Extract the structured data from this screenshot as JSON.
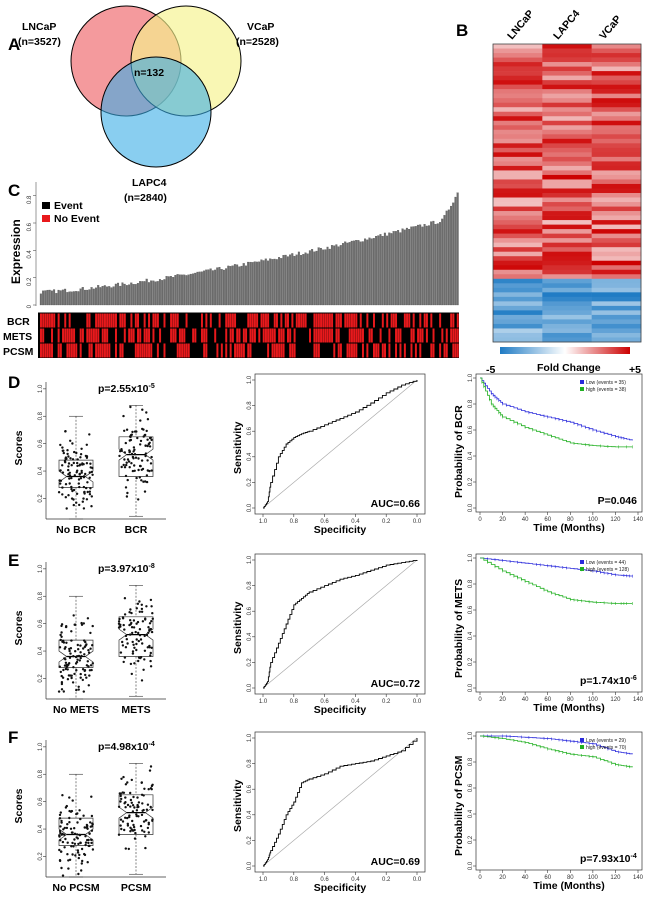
{
  "panels": {
    "A": "A",
    "B": "B",
    "C": "C",
    "D": "D",
    "E": "E",
    "F": "F"
  },
  "venn": {
    "lncap_name": "LNCaP",
    "lncap_n": "(n=3527)",
    "vcap_name": "VCaP",
    "vcap_n": "(n=2528)",
    "lapc4_name": "LAPC4",
    "lapc4_n": "(n=2840)",
    "overlap": "n=132",
    "colors": {
      "lncap": "#f0787c",
      "vcap": "#f6f38c",
      "lapc4": "#3aaee6"
    }
  },
  "heatmap": {
    "columns": [
      "LNCaP",
      "LAPC4",
      "VCaP"
    ],
    "legend_min": "-5",
    "legend_max": "+5",
    "legend_label": "Fold Change",
    "colors": {
      "high": "#cc0000",
      "low": "#1f7bc4",
      "mid": "#ffffff"
    }
  },
  "panelC": {
    "ylabel": "Expression",
    "legend": [
      {
        "label": "Event",
        "color": "#000000"
      },
      {
        "label": "No Event",
        "color": "#e8191c"
      }
    ],
    "yticks": [
      "0",
      "0.2",
      "0.4",
      "0.6",
      "0.8"
    ],
    "tracks": [
      "BCR",
      "METS",
      "PCSM"
    ]
  },
  "rows": [
    {
      "box": {
        "ylabel": "Scores",
        "p_text": "p=2.55x10",
        "p_exp": "-5",
        "groups": [
          "No BCR",
          "BCR"
        ],
        "yticks": [
          "0.2",
          "0.4",
          "0.6",
          "0.8",
          "1.0"
        ]
      },
      "roc": {
        "ylabel": "Sensitivity",
        "xlabel": "Specificity",
        "auc": "AUC=0.66",
        "xticks": [
          "1.0",
          "0.8",
          "0.6",
          "0.4",
          "0.2",
          "0.0"
        ],
        "yticks": [
          "0.0",
          "0.2",
          "0.4",
          "0.6",
          "0.8",
          "1.0"
        ]
      },
      "km": {
        "ylabel": "Probability of BCR",
        "xlabel": "Time (Months)",
        "p_text": "P=0.046",
        "p_exp": "",
        "legend": [
          "Low (events = 35)",
          "high (events = 38)"
        ],
        "xticks": [
          "0",
          "20",
          "40",
          "60",
          "80",
          "100",
          "120",
          "140"
        ],
        "yticks": [
          "0.0",
          "0.2",
          "0.4",
          "0.6",
          "0.8",
          "1.0"
        ]
      }
    },
    {
      "box": {
        "ylabel": "Scores",
        "p_text": "p=3.97x10",
        "p_exp": "-8",
        "groups": [
          "No METS",
          "METS"
        ],
        "yticks": [
          "0.2",
          "0.4",
          "0.6",
          "0.8",
          "1.0"
        ]
      },
      "roc": {
        "ylabel": "Sensitivity",
        "xlabel": "Specificity",
        "auc": "AUC=0.72",
        "xticks": [
          "1.0",
          "0.8",
          "0.6",
          "0.4",
          "0.2",
          "0.0"
        ],
        "yticks": [
          "0.0",
          "0.2",
          "0.4",
          "0.6",
          "0.8",
          "1.0"
        ]
      },
      "km": {
        "ylabel": "Probability of METS",
        "xlabel": "Time (Months)",
        "p_text": "p=1.74x10",
        "p_exp": "-6",
        "legend": [
          "Low (events = 44)",
          "high (events = 128)"
        ],
        "xticks": [
          "0",
          "20",
          "40",
          "60",
          "80",
          "100",
          "120",
          "140"
        ],
        "yticks": [
          "0.0",
          "0.2",
          "0.4",
          "0.6",
          "0.8",
          "1.0"
        ]
      }
    },
    {
      "box": {
        "ylabel": "Scores",
        "p_text": "p=4.98x10",
        "p_exp": "-4",
        "groups": [
          "No PCSM",
          "PCSM"
        ],
        "yticks": [
          "0.2",
          "0.4",
          "0.6",
          "0.8",
          "1.0"
        ]
      },
      "roc": {
        "ylabel": "Sensitivity",
        "xlabel": "Specificity",
        "auc": "AUC=0.69",
        "xticks": [
          "1.0",
          "0.8",
          "0.6",
          "0.4",
          "0.2",
          "0.0"
        ],
        "yticks": [
          "0.0",
          "0.2",
          "0.4",
          "0.6",
          "0.8",
          "1.0"
        ]
      },
      "km": {
        "ylabel": "Probability of PCSM",
        "xlabel": "Time (Months)",
        "p_text": "p=7.93x10",
        "p_exp": "-4",
        "legend": [
          "Low (events = 29)",
          "high (events = 70)"
        ],
        "xticks": [
          "0",
          "20",
          "40",
          "60",
          "80",
          "100",
          "120",
          "140"
        ],
        "yticks": [
          "0.0",
          "0.2",
          "0.4",
          "0.6",
          "0.8",
          "1.0"
        ]
      }
    }
  ],
  "chart_data": [
    {
      "type": "line",
      "title": "",
      "xlabel": "Specificity",
      "ylabel": "Sensitivity",
      "auc": 0.66,
      "x": [
        1.0,
        0.97,
        0.95,
        0.9,
        0.85,
        0.8,
        0.75,
        0.7,
        0.6,
        0.5,
        0.4,
        0.3,
        0.2,
        0.1,
        0.0
      ],
      "y": [
        0.0,
        0.05,
        0.2,
        0.4,
        0.5,
        0.55,
        0.58,
        0.6,
        0.65,
        0.7,
        0.75,
        0.82,
        0.9,
        0.96,
        1.0
      ]
    },
    {
      "type": "line",
      "title": "",
      "xlabel": "Specificity",
      "ylabel": "Sensitivity",
      "auc": 0.72,
      "x": [
        1.0,
        0.97,
        0.95,
        0.9,
        0.85,
        0.8,
        0.75,
        0.7,
        0.6,
        0.5,
        0.4,
        0.3,
        0.2,
        0.1,
        0.0
      ],
      "y": [
        0.0,
        0.05,
        0.2,
        0.35,
        0.5,
        0.65,
        0.7,
        0.75,
        0.8,
        0.85,
        0.88,
        0.92,
        0.96,
        0.98,
        1.0
      ]
    },
    {
      "type": "line",
      "title": "",
      "xlabel": "Specificity",
      "ylabel": "Sensitivity",
      "auc": 0.69,
      "x": [
        1.0,
        0.97,
        0.95,
        0.9,
        0.85,
        0.8,
        0.75,
        0.7,
        0.6,
        0.5,
        0.4,
        0.3,
        0.2,
        0.1,
        0.0
      ],
      "y": [
        0.0,
        0.05,
        0.12,
        0.25,
        0.4,
        0.5,
        0.65,
        0.68,
        0.72,
        0.78,
        0.8,
        0.82,
        0.86,
        0.9,
        1.0
      ]
    },
    {
      "type": "line",
      "title": "",
      "xlabel": "Time (Months)",
      "ylabel": "Probability of BCR",
      "series": [
        {
          "name": "Low (events = 35)",
          "x": [
            0,
            10,
            20,
            40,
            60,
            80,
            100,
            120,
            135
          ],
          "y": [
            1.0,
            0.88,
            0.8,
            0.74,
            0.7,
            0.66,
            0.6,
            0.55,
            0.52
          ]
        },
        {
          "name": "high (events = 38)",
          "x": [
            0,
            10,
            20,
            40,
            60,
            80,
            100,
            120,
            135
          ],
          "y": [
            1.0,
            0.8,
            0.7,
            0.62,
            0.56,
            0.5,
            0.48,
            0.47,
            0.47
          ]
        }
      ]
    },
    {
      "type": "line",
      "title": "",
      "xlabel": "Time (Months)",
      "ylabel": "Probability of METS",
      "series": [
        {
          "name": "Low (events = 44)",
          "x": [
            0,
            20,
            40,
            60,
            80,
            100,
            120,
            135
          ],
          "y": [
            1.0,
            0.98,
            0.96,
            0.94,
            0.92,
            0.9,
            0.87,
            0.86
          ]
        },
        {
          "name": "high (events = 128)",
          "x": [
            0,
            20,
            40,
            60,
            80,
            100,
            120,
            135
          ],
          "y": [
            1.0,
            0.9,
            0.82,
            0.74,
            0.68,
            0.66,
            0.65,
            0.65
          ]
        }
      ]
    },
    {
      "type": "line",
      "title": "",
      "xlabel": "Time (Months)",
      "ylabel": "Probability of PCSM",
      "series": [
        {
          "name": "Low (events = 29)",
          "x": [
            0,
            20,
            40,
            60,
            80,
            100,
            120,
            135
          ],
          "y": [
            1.0,
            1.0,
            0.99,
            0.98,
            0.96,
            0.94,
            0.88,
            0.86
          ]
        },
        {
          "name": "high (events = 70)",
          "x": [
            0,
            20,
            40,
            60,
            80,
            100,
            120,
            135
          ],
          "y": [
            1.0,
            0.98,
            0.95,
            0.9,
            0.86,
            0.84,
            0.78,
            0.76
          ]
        }
      ]
    }
  ]
}
